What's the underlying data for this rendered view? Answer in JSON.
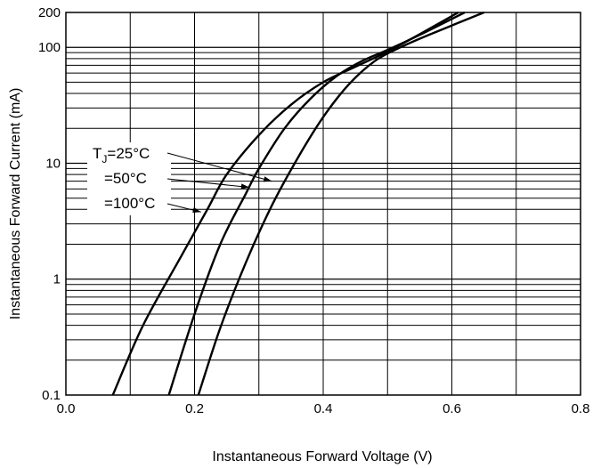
{
  "chart_data": {
    "type": "line",
    "title": "",
    "xlabel": "Instantaneous Forward Voltage (V)",
    "ylabel": "Instantaneous Forward Current (mA)",
    "xlim": [
      0.0,
      0.8
    ],
    "ylim": [
      0.1,
      200
    ],
    "yscale": "log",
    "grid": true,
    "x_ticks": [
      "0.0",
      "0.2",
      "0.4",
      "0.6",
      "0.8"
    ],
    "y_ticks": [
      {
        "value": 0.1,
        "label": "0.1"
      },
      {
        "value": 1,
        "label": "1"
      },
      {
        "value": 10,
        "label": "10"
      },
      {
        "value": 100,
        "label": "100"
      },
      {
        "value": 200,
        "label": "200"
      }
    ],
    "series": [
      {
        "name": "TJ=25°C",
        "label_prefix": "T",
        "label_sub": "J",
        "label_main": "=25°C",
        "x": [
          0.073,
          0.12,
          0.18,
          0.22,
          0.25,
          0.3,
          0.35,
          0.4,
          0.45,
          0.5,
          0.55,
          0.61
        ],
        "y": [
          0.1,
          0.4,
          1.6,
          4.0,
          8.0,
          17.5,
          32,
          50,
          68,
          92,
          130,
          200
        ]
      },
      {
        "name": "=50°C",
        "label_main": "=50°C",
        "x": [
          0.16,
          0.2,
          0.24,
          0.28,
          0.3,
          0.34,
          0.38,
          0.42,
          0.46,
          0.5,
          0.55,
          0.62
        ],
        "y": [
          0.1,
          0.5,
          2.0,
          5.5,
          9.0,
          20,
          36,
          56,
          76,
          95,
          128,
          200
        ]
      },
      {
        "name": "=100°C",
        "label_main": "=100°C",
        "x": [
          0.206,
          0.24,
          0.28,
          0.32,
          0.36,
          0.4,
          0.44,
          0.48,
          0.52,
          0.57,
          0.65
        ],
        "y": [
          0.1,
          0.38,
          1.4,
          4.3,
          11,
          25,
          48,
          76,
          100,
          132,
          200
        ]
      }
    ]
  }
}
